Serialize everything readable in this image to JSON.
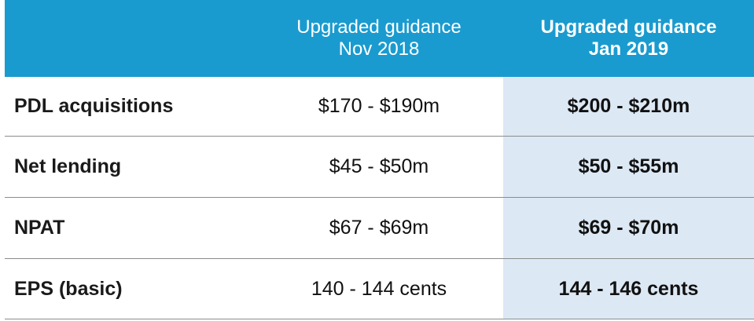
{
  "header": {
    "col1": "",
    "col2_line1": "Upgraded guidance",
    "col2_line2": "Nov 2018",
    "col3_line1": "Upgraded guidance",
    "col3_line2": "Jan 2019"
  },
  "rows": [
    {
      "label": "PDL acquisitions",
      "nov2018": "$170 - $190m",
      "jan2019": "$200 - $210m"
    },
    {
      "label": "Net lending",
      "nov2018": "$45 - $50m",
      "jan2019": "$50 - $55m"
    },
    {
      "label": "NPAT",
      "nov2018": "$67 - $69m",
      "jan2019": "$69 - $70m"
    },
    {
      "label": "EPS (basic)",
      "nov2018": "140 - 144 cents",
      "jan2019": "144 - 146 cents"
    }
  ],
  "colors": {
    "header_bg": "#1a9bcf",
    "highlight_bg": "#dce8f4",
    "divider": "#8c8c8c"
  }
}
